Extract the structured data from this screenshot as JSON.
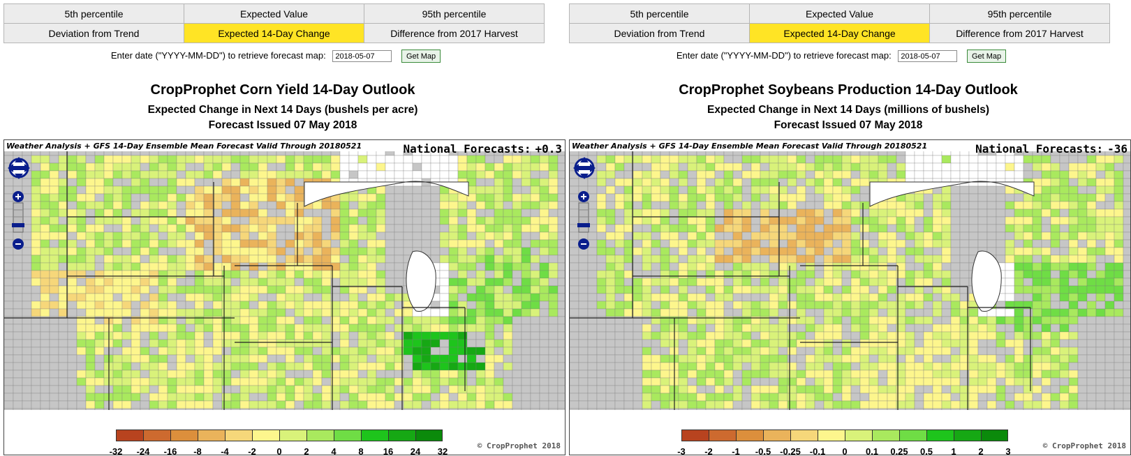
{
  "panels": [
    {
      "tabs": {
        "row1": [
          "5th percentile",
          "Expected Value",
          "95th percentile"
        ],
        "row2": [
          "Deviation from Trend",
          "Expected 14-Day Change",
          "Difference from 2017 Harvest"
        ],
        "active": "Expected 14-Day Change"
      },
      "date_prompt": "Enter date (\"YYYY-MM-DD\") to retrieve forecast map:",
      "date_value": "2018-05-07",
      "get_map_label": "Get Map",
      "title": "CropProphet Corn Yield 14-Day Outlook",
      "subtitle1": "Expected Change in Next 14 Days (bushels per acre)",
      "subtitle2": "Forecast Issued 07 May 2018",
      "map_header": "Weather Analysis + GFS 14-Day Ensemble Mean Forecast Valid Through 20180521",
      "national_label": "National Forecasts:",
      "national_value": "+0.3",
      "legend_ticks": [
        "-32",
        "-24",
        "-16",
        "-8",
        "-4",
        "-2",
        "0",
        "2",
        "4",
        "8",
        "16",
        "24",
        "32"
      ],
      "copyright": "© CropProphet 2018"
    },
    {
      "tabs": {
        "row1": [
          "5th percentile",
          "Expected Value",
          "95th percentile"
        ],
        "row2": [
          "Deviation from Trend",
          "Expected 14-Day Change",
          "Difference from 2017 Harvest"
        ],
        "active": "Expected 14-Day Change"
      },
      "date_prompt": "Enter date (\"YYYY-MM-DD\") to retrieve forecast map:",
      "date_value": "2018-05-07",
      "get_map_label": "Get Map",
      "title": "CropProphet Soybeans Production 14-Day Outlook",
      "subtitle1": "Expected Change in Next 14 Days (millions of bushels)",
      "subtitle2": "Forecast Issued 07 May 2018",
      "map_header": "Weather Analysis + GFS 14-Day Ensemble Mean Forecast Valid Through 20180521",
      "national_label": "National Forecasts:",
      "national_value": "-36",
      "legend_ticks": [
        "-3",
        "-2",
        "-1",
        "-0.5",
        "-0.25",
        "-0.1",
        "0",
        "0.1",
        "0.25",
        "0.5",
        "1",
        "2",
        "3"
      ],
      "copyright": "© CropProphet 2018"
    }
  ],
  "legend_colors": [
    "#b8431f",
    "#cd6a2f",
    "#dc8f3c",
    "#eab35b",
    "#f6d77a",
    "#fdf68d",
    "#d9f27a",
    "#a9e95e",
    "#6fdd45",
    "#1ec41c",
    "#16a814",
    "#0b8a0b"
  ],
  "map_colors": {
    "water": "#ffffff",
    "non_crop": "#c6c6c6",
    "border": "#333333"
  }
}
